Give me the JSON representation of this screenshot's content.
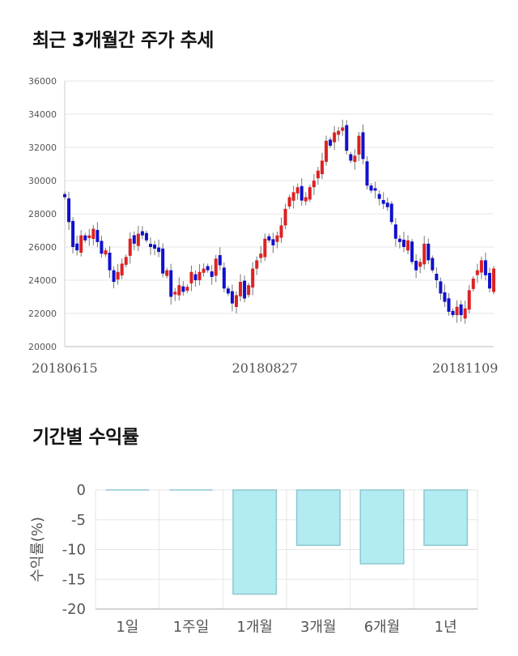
{
  "sections": {
    "price_title": "최근 3개월간 주가 추세",
    "return_title": "기간별 수익률"
  },
  "colors": {
    "up": "#dd2222",
    "down": "#1111cc",
    "bar_fill": "#b3ebf2",
    "bar_stroke": "#8cc8cf",
    "grid": "#e6e6e6"
  },
  "chart_data": [
    {
      "type": "candlestick",
      "title": "최근 3개월간 주가 추세",
      "ylim": [
        20000,
        36000
      ],
      "yticks": [
        20000,
        22000,
        24000,
        26000,
        28000,
        30000,
        32000,
        34000,
        36000
      ],
      "xtick_labels": [
        {
          "label": "20180615",
          "index": 0
        },
        {
          "label": "20180827",
          "index": 49
        },
        {
          "label": "20181109",
          "index": 98
        }
      ],
      "grid": true,
      "close": [
        29000,
        27500,
        26000,
        25800,
        26700,
        26400,
        26700,
        27100,
        26300,
        25600,
        25800,
        24600,
        23900,
        24500,
        25000,
        25400,
        26500,
        26200,
        26800,
        26700,
        26400,
        26000,
        25900,
        25700,
        24400,
        24600,
        23000,
        23300,
        23700,
        23300,
        23600,
        24500,
        24000,
        24500,
        24700,
        24600,
        24200,
        25300,
        24900,
        23500,
        23200,
        22600,
        23100,
        23900,
        22900,
        23700,
        24700,
        25200,
        25600,
        26500,
        26400,
        26100,
        26700,
        27300,
        28300,
        29000,
        29300,
        29600,
        28800,
        29000,
        29600,
        30000,
        30600,
        31200,
        32400,
        32100,
        32900,
        33000,
        33200,
        31800,
        31200,
        31500,
        32700,
        31300,
        29700,
        29400,
        29400,
        28900,
        28600,
        28400,
        27500,
        26500,
        26300,
        26000,
        26400,
        25100,
        24600,
        25100,
        26200,
        25200,
        24600,
        24000,
        23200,
        22700,
        22100,
        21900,
        22400,
        21900,
        22300,
        23400,
        24100,
        24600,
        25200,
        24300,
        23500,
        24700
      ]
    },
    {
      "type": "bar",
      "title": "기간별 수익률",
      "ylabel": "수익률(%)",
      "ylim": [
        -20,
        0
      ],
      "yticks": [
        0,
        -5,
        -10,
        -15,
        -20
      ],
      "categories": [
        "1일",
        "1주일",
        "1개월",
        "3개월",
        "6개월",
        "1년"
      ],
      "values": [
        0,
        0,
        -17.5,
        -9.3,
        -12.4,
        -9.3
      ],
      "grid": true
    }
  ]
}
